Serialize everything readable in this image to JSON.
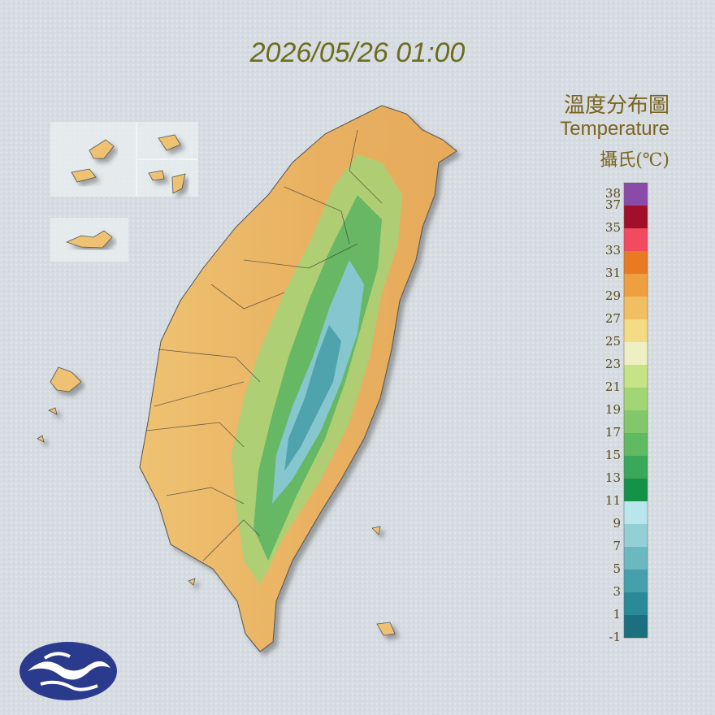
{
  "timestamp": "2026/05/26 01:00",
  "legend": {
    "title": "溫度分布圖",
    "subtitle": "Temperature",
    "unit": "攝氏(℃)",
    "range": [
      -1,
      39
    ],
    "ticks": [
      38,
      37,
      35,
      33,
      31,
      29,
      27,
      25,
      23,
      21,
      19,
      17,
      15,
      13,
      11,
      9,
      7,
      5,
      3,
      1,
      -1
    ],
    "colors": [
      "#1b6f7e",
      "#2b8a97",
      "#46a0ab",
      "#6bb8c1",
      "#93cfd7",
      "#b9e6ec",
      "#16914a",
      "#3aa85a",
      "#5fba62",
      "#82c86a",
      "#a2d573",
      "#c6e385",
      "#eef0c4",
      "#f5dc84",
      "#f0bf62",
      "#ee9f40",
      "#e87a22",
      "#f24a5e",
      "#a0102a",
      "#8a4aa8"
    ]
  }
}
